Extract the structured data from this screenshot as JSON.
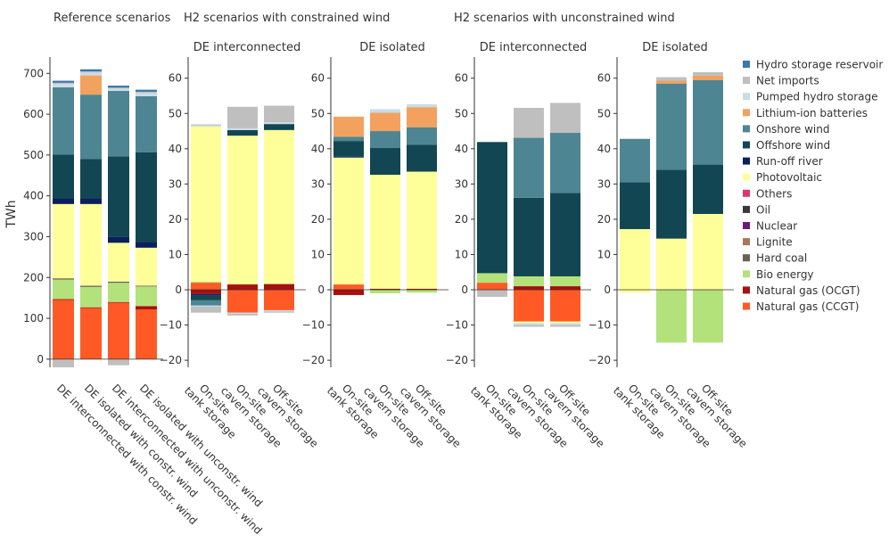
{
  "colors": {
    "Hydro storage reservoir": "#3a78a8",
    "Net imports": "#bfbfbf",
    "Pumped hydro storage": "#c9dce8",
    "Lithium-ion batteries": "#f2a25e",
    "Onshore wind": "#4e8593",
    "Offshore wind": "#124652",
    "Run-off river": "#0b1f5c",
    "Photovoltaic": "#ffff99",
    "Others": "#d93a67",
    "Oil": "#3a3a3a",
    "Nuclear": "#6d1a7a",
    "Lignite": "#a8785a",
    "Hard coal": "#6e5f55",
    "Bio energy": "#b3e27a",
    "Natural gas (OCGT)": "#a80f0f",
    "Natural gas (CCGT)": "#ff5a26"
  },
  "legend": [
    "Hydro storage reservoir",
    "Net imports",
    "Pumped hydro storage",
    "Lithium-ion batteries",
    "Onshore wind",
    "Offshore wind",
    "Run-off river",
    "Photovoltaic",
    "Others",
    "Oil",
    "Nuclear",
    "Lignite",
    "Hard coal",
    "Bio energy",
    "Natural gas (OCGT)",
    "Natural gas (CCGT)"
  ],
  "group_titles": {
    "reference": "Reference scenarios",
    "constrained": "H2 scenarios with constrained wind",
    "unconstrained": "H2 scenarios with unconstrained wind"
  },
  "y_axis_label": "TWh",
  "chart_data": [
    {
      "type": "bar",
      "stacked": true,
      "group": "reference",
      "title": "",
      "ylabel": "TWh",
      "ylim": [
        -20,
        740
      ],
      "ticks": [
        0,
        100,
        200,
        300,
        400,
        500,
        600,
        700
      ],
      "categories": [
        "DE interconnected with constr. wind",
        "DE isolated with constr. wind",
        "DE interconnected with unconstr. wind",
        "DE isolated with unconstr. wind"
      ],
      "bars": [
        {
          "neg": {
            "Net imports": -20
          },
          "pos": {
            "Natural gas (CCGT)": 145,
            "Natural gas (OCGT)": 2,
            "Bio energy": 48,
            "Hard coal": 3,
            "Photovoltaic": 182,
            "Run-off river": 14,
            "Offshore wind": 107,
            "Onshore wind": 165,
            "Pumped hydro storage": 8,
            "Net imports": 3,
            "Hydro storage reservoir": 5
          }
        },
        {
          "neg": {},
          "pos": {
            "Natural gas (CCGT)": 125,
            "Natural gas (OCGT)": 2,
            "Bio energy": 50,
            "Hard coal": 3,
            "Photovoltaic": 200,
            "Run-off river": 14,
            "Offshore wind": 96,
            "Onshore wind": 158,
            "Lithium-ion batteries": 47,
            "Pumped hydro storage": 7,
            "Net imports": 3,
            "Hydro storage reservoir": 5
          }
        },
        {
          "neg": {
            "Net imports": -15
          },
          "pos": {
            "Natural gas (CCGT)": 138,
            "Natural gas (OCGT)": 2,
            "Bio energy": 47,
            "Hard coal": 3,
            "Photovoltaic": 95,
            "Run-off river": 14,
            "Offshore wind": 198,
            "Onshore wind": 160,
            "Pumped hydro storage": 6,
            "Net imports": 2,
            "Hydro storage reservoir": 5
          }
        },
        {
          "neg": {},
          "pos": {
            "Natural gas (CCGT)": 122,
            "Natural gas (OCGT)": 8,
            "Bio energy": 48,
            "Hard coal": 2,
            "Photovoltaic": 93,
            "Run-off river": 14,
            "Offshore wind": 220,
            "Onshore wind": 137,
            "Pumped hydro storage": 8,
            "Net imports": 3,
            "Hydro storage reservoir": 5
          }
        }
      ]
    },
    {
      "type": "bar",
      "stacked": true,
      "group": "constrained",
      "title": "DE interconnected",
      "ylim": [
        -22,
        66
      ],
      "ticks": [
        -20,
        -10,
        0,
        10,
        20,
        30,
        40,
        50,
        60
      ],
      "categories": [
        "On-site\ntank storage",
        "On-site\ncavern storage",
        "Off-site\ncavern storage"
      ],
      "bars": [
        {
          "neg": {
            "Natural gas (OCGT)": -1.2,
            "Run-off river": -0.5,
            "Offshore wind": -1.3,
            "Onshore wind": -1.5,
            "Pumped hydro storage": -0.3,
            "Net imports": -1.7
          },
          "pos": {
            "Natural gas (CCGT)": 2.0,
            "Bio energy": 0.3,
            "Photovoltaic": 44.0,
            "Pumped hydro storage": 0.3,
            "Net imports": 0.3
          }
        },
        {
          "neg": {
            "Natural gas (CCGT)": -6.5,
            "Pumped hydro storage": -0.3,
            "Net imports": -0.5
          },
          "pos": {
            "Natural gas (OCGT)": 1.5,
            "Bio energy": 0.2,
            "Photovoltaic": 42.0,
            "Offshore wind": 1.6,
            "Pumped hydro storage": 0.5,
            "Net imports": 6.1
          }
        },
        {
          "neg": {
            "Natural gas (CCGT)": -5.8,
            "Pumped hydro storage": -0.4,
            "Net imports": -0.3
          },
          "pos": {
            "Natural gas (OCGT)": 1.6,
            "Bio energy": 0.2,
            "Photovoltaic": 43.5,
            "Offshore wind": 1.7,
            "Pumped hydro storage": 0.5,
            "Net imports": 4.7
          }
        }
      ]
    },
    {
      "type": "bar",
      "stacked": true,
      "group": "constrained",
      "title": "DE isolated",
      "ylim": [
        -22,
        66
      ],
      "ticks": [
        -20,
        -10,
        0,
        10,
        20,
        30,
        40,
        50,
        60
      ],
      "categories": [
        "On-site\ntank storage",
        "On-site\ncavern storage",
        "Off-site\ncavern storage"
      ],
      "bars": [
        {
          "neg": {
            "Natural gas (OCGT)": -1.5
          },
          "pos": {
            "Natural gas (CCGT)": 1.5,
            "Photovoltaic": 36.0,
            "Run-off river": 0.2,
            "Offshore wind": 4.5,
            "Onshore wind": 1.2,
            "Lithium-ion batteries": 5.7
          }
        },
        {
          "neg": {
            "Bio energy": -1.0
          },
          "pos": {
            "Natural gas (OCGT)": 0.3,
            "Photovoltaic": 32.3,
            "Offshore wind": 7.6,
            "Onshore wind": 4.8,
            "Lithium-ion batteries": 5.2,
            "Pumped hydro storage": 1.0
          }
        },
        {
          "neg": {
            "Bio energy": -0.8
          },
          "pos": {
            "Natural gas (OCGT)": 0.3,
            "Photovoltaic": 33.2,
            "Offshore wind": 7.6,
            "Onshore wind": 5.0,
            "Lithium-ion batteries": 5.7,
            "Pumped hydro storage": 0.8
          }
        }
      ]
    },
    {
      "type": "bar",
      "stacked": true,
      "group": "unconstrained",
      "title": "DE interconnected",
      "ylim": [
        -22,
        66
      ],
      "ticks": [
        -20,
        -10,
        0,
        10,
        20,
        30,
        40,
        50,
        60
      ],
      "categories": [
        "On-site\ntank storage",
        "On-site\ncavern storage",
        "Off-site\ncavern storage"
      ],
      "bars": [
        {
          "neg": {
            "Net imports": -2.0
          },
          "pos": {
            "Natural gas (CCGT)": 2.0,
            "Bio energy": 2.7,
            "Offshore wind": 37.2
          }
        },
        {
          "neg": {
            "Natural gas (CCGT)": -9.0,
            "Pumped hydro storage": -0.5,
            "Net imports": -0.5,
            "Photovoltaic": -0.5
          },
          "pos": {
            "Natural gas (OCGT)": 1.0,
            "Bio energy": 2.8,
            "Offshore wind": 22.3,
            "Onshore wind": 17.0,
            "Net imports": 8.5
          }
        },
        {
          "neg": {
            "Natural gas (CCGT)": -9.0,
            "Pumped hydro storage": -0.5,
            "Net imports": -0.5,
            "Photovoltaic": -0.5
          },
          "pos": {
            "Natural gas (OCGT)": 1.0,
            "Bio energy": 2.8,
            "Offshore wind": 23.7,
            "Onshore wind": 17.0,
            "Net imports": 8.5
          }
        }
      ]
    },
    {
      "type": "bar",
      "stacked": true,
      "group": "unconstrained",
      "title": "DE isolated",
      "ylim": [
        -22,
        66
      ],
      "ticks": [
        -20,
        -10,
        0,
        10,
        20,
        30,
        40,
        50,
        60
      ],
      "categories": [
        "On-site\ntank storage",
        "On-site\ncavern storage",
        "Off-site\ncavern storage"
      ],
      "bars": [
        {
          "neg": {
            "Photovoltaic": -0.8
          },
          "pos": {
            "Photovoltaic": 17.2,
            "Offshore wind": 13.3,
            "Onshore wind": 12.3
          }
        },
        {
          "neg": {
            "Bio energy": -15.0
          },
          "pos": {
            "Photovoltaic": 14.5,
            "Offshore wind": 19.5,
            "Onshore wind": 24.5,
            "Lithium-ion batteries": 0.8,
            "Net imports": 1.0
          }
        },
        {
          "neg": {
            "Bio energy": -15.0
          },
          "pos": {
            "Photovoltaic": 21.5,
            "Offshore wind": 14.0,
            "Onshore wind": 24.0,
            "Lithium-ion batteries": 1.2,
            "Net imports": 1.0
          }
        }
      ]
    }
  ]
}
